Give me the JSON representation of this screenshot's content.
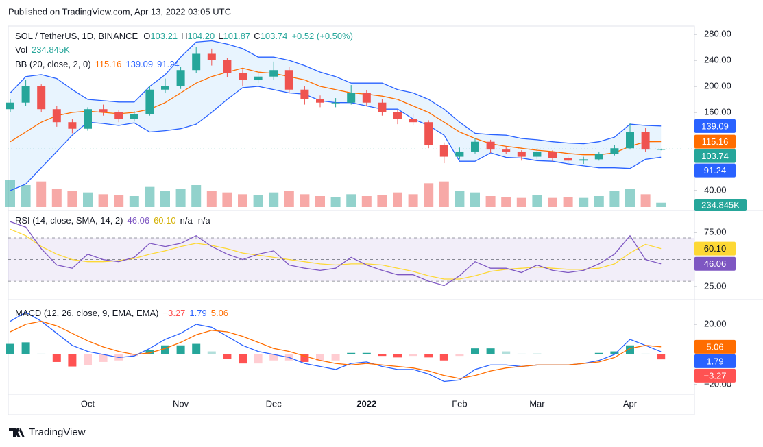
{
  "header": {
    "published": "Published on TradingView.com, Apr 13, 2022 03:05 UTC"
  },
  "footer": {
    "brand": "TradingView"
  },
  "chart_data": [
    {
      "type": "candlestick",
      "title": "SOL / TetherUS, 1D, BINANCE",
      "ohlc_letters": [
        "O",
        "H",
        "L",
        "C"
      ],
      "change": "+0.52 (+0.50%)",
      "high_last_label": "104.20",
      "x": [
        null,
        null,
        null,
        null,
        null,
        "Oct",
        null,
        null,
        null,
        null,
        null,
        "Nov",
        null,
        null,
        null,
        null,
        null,
        "Dec",
        null,
        null,
        null,
        null,
        null,
        "2022",
        null,
        null,
        null,
        null,
        null,
        "Feb",
        null,
        null,
        null,
        null,
        "Mar",
        null,
        null,
        null,
        null,
        null,
        "Apr",
        null,
        null
      ],
      "open": [
        165,
        175,
        200,
        165,
        145,
        135,
        165,
        160,
        150,
        157,
        195,
        200,
        225,
        250,
        240,
        220,
        210,
        215,
        225,
        195,
        180,
        175,
        175,
        190,
        175,
        160,
        150,
        145,
        110,
        92,
        100,
        115,
        103,
        100,
        92,
        100,
        90,
        86,
        88,
        96,
        105,
        130,
        103.21
      ],
      "high": [
        180,
        210,
        203,
        170,
        150,
        168,
        172,
        164,
        162,
        200,
        212,
        230,
        260,
        258,
        244,
        226,
        222,
        238,
        230,
        200,
        186,
        182,
        202,
        194,
        180,
        164,
        158,
        148,
        114,
        106,
        120,
        118,
        108,
        102,
        105,
        102,
        93,
        92,
        100,
        110,
        143,
        136,
        104.2
      ],
      "low": [
        160,
        170,
        160,
        138,
        128,
        132,
        155,
        145,
        146,
        155,
        190,
        196,
        220,
        232,
        214,
        200,
        205,
        210,
        190,
        172,
        168,
        168,
        172,
        170,
        155,
        142,
        140,
        105,
        82,
        88,
        97,
        98,
        96,
        86,
        88,
        85,
        82,
        81,
        86,
        94,
        103,
        100,
        101.87
      ],
      "close": [
        175,
        200,
        165,
        145,
        135,
        165,
        160,
        150,
        157,
        195,
        200,
        225,
        250,
        240,
        220,
        210,
        215,
        225,
        195,
        180,
        175,
        175,
        190,
        175,
        160,
        150,
        145,
        110,
        92,
        100,
        115,
        103,
        100,
        92,
        100,
        90,
        86,
        88,
        96,
        105,
        130,
        103,
        103.74
      ],
      "up_color": "#26a69a",
      "down_color": "#ef5350",
      "ylim": [
        14.7,
        292.6
      ],
      "yticks": [
        {
          "value": 40,
          "label": "40.00"
        },
        {
          "value": 160,
          "label": "160.00"
        },
        {
          "value": 200,
          "label": "200.00"
        },
        {
          "value": 240,
          "label": "240.00"
        },
        {
          "value": 280,
          "label": "280.00"
        }
      ],
      "volume": {
        "name": "Vol",
        "values": [
          1500000,
          1200000,
          1400000,
          1000000,
          900000,
          800000,
          700000,
          650000,
          600000,
          1100000,
          900000,
          1000000,
          1200000,
          900000,
          800000,
          700000,
          650000,
          800000,
          900000,
          700000,
          600000,
          550000,
          700000,
          600000,
          650000,
          800000,
          700000,
          1300000,
          1400000,
          900000,
          800000,
          600000,
          550000,
          500000,
          650000,
          500000,
          550000,
          500000,
          600000,
          900000,
          1000000,
          700000,
          234845
        ],
        "last_label": "234.845K",
        "up_color": "rgba(38,166,154,0.5)",
        "down_color": "rgba(239,83,80,0.5)"
      },
      "bb": {
        "name": "BB (20, close, 2, 0)",
        "fill": "rgba(33,150,243,0.1)",
        "basis": {
          "color": "#ff6d00",
          "values": [
            115,
            130,
            145,
            155,
            160,
            162,
            160,
            158,
            160,
            165,
            175,
            190,
            205,
            215,
            222,
            228,
            222,
            220,
            215,
            210,
            200,
            195,
            190,
            188,
            185,
            180,
            170,
            160,
            145,
            130,
            120,
            112,
            108,
            105,
            102,
            100,
            97,
            95,
            95,
            98,
            108,
            115,
            115.16
          ]
        },
        "upper": {
          "color": "#2962ff",
          "values": [
            190,
            215,
            218,
            212,
            195,
            180,
            178,
            176,
            176,
            200,
            218,
            245,
            268,
            270,
            265,
            258,
            245,
            245,
            240,
            232,
            222,
            215,
            205,
            205,
            205,
            195,
            190,
            180,
            165,
            145,
            128,
            126,
            125,
            120,
            118,
            115,
            113,
            112,
            115,
            122,
            142,
            140,
            139.09
          ]
        },
        "lower": {
          "color": "#2962ff",
          "values": [
            40,
            50,
            75,
            100,
            125,
            145,
            143,
            140,
            144,
            130,
            132,
            135,
            142,
            160,
            180,
            198,
            200,
            195,
            190,
            188,
            178,
            175,
            175,
            170,
            165,
            165,
            150,
            140,
            125,
            85,
            85,
            98,
            91,
            90,
            86,
            85,
            81,
            78,
            75,
            75,
            74,
            88,
            91.24
          ]
        }
      }
    },
    {
      "type": "line",
      "title": "RSI (14, close, SMA, 14, 2)",
      "na_labels": [
        "n/a",
        "n/a"
      ],
      "series": [
        {
          "color": "#7e57c2",
          "values": [
            85,
            80,
            60,
            45,
            42,
            55,
            50,
            48,
            52,
            65,
            62,
            65,
            72,
            62,
            55,
            50,
            55,
            58,
            45,
            42,
            40,
            42,
            52,
            45,
            40,
            36,
            36,
            30,
            26,
            35,
            48,
            42,
            42,
            38,
            45,
            40,
            38,
            40,
            46,
            55,
            72,
            50,
            46.06
          ]
        },
        {
          "color": "#fdd835",
          "values": [
            78,
            72,
            62,
            55,
            50,
            48,
            48,
            49,
            51,
            55,
            58,
            62,
            65,
            63,
            60,
            56,
            54,
            52,
            50,
            48,
            46,
            45,
            46,
            46,
            45,
            42,
            39,
            35,
            32,
            32,
            35,
            39,
            41,
            42,
            43,
            42,
            41,
            41,
            42,
            46,
            56,
            64,
            60.1
          ],
          "last_label": "60.10"
        }
      ],
      "bands": [
        30,
        50,
        70
      ],
      "band_fill": "rgba(126,87,194,0.1)",
      "ylim": [
        14.9,
        93.4
      ],
      "yticks": [
        {
          "value": 25,
          "label": "25.00"
        },
        {
          "value": 75,
          "label": "75.00"
        }
      ]
    },
    {
      "type": "macd",
      "title": "MACD (12, 26, close, 9, EMA, EMA)",
      "histogram": {
        "values": [
          7,
          8,
          0.5,
          -5,
          -8,
          -7,
          -5,
          -4,
          -1,
          3,
          6,
          6,
          7,
          2,
          -3,
          -6,
          -6,
          -4,
          -4,
          -5,
          -4,
          -4,
          1,
          1,
          -1,
          -2,
          -1,
          -2,
          -4,
          -1,
          4,
          4,
          2,
          0.5,
          0.5,
          0.3,
          0.3,
          0.3,
          1,
          2,
          6,
          0.5,
          -3.27
        ],
        "last_label": "−3.27",
        "colors": [
          "#26a69a",
          "#b2dfdb",
          "#ffcdd2",
          "#ff5252"
        ]
      },
      "series": [
        {
          "color": "#2962ff",
          "values": [
            22,
            28,
            22,
            14,
            6,
            2,
            0,
            -2,
            -1,
            4,
            10,
            14,
            20,
            18,
            12,
            6,
            2,
            0,
            -2,
            -6,
            -8,
            -10,
            -6,
            -5,
            -8,
            -10,
            -10,
            -13,
            -18,
            -17,
            -10,
            -7,
            -7,
            -8,
            -7,
            -7,
            -7,
            -6,
            -4,
            0,
            10,
            6,
            1.79
          ]
        },
        {
          "color": "#ff6d00",
          "values": [
            15,
            20,
            22,
            19,
            14,
            9,
            5,
            2,
            0,
            1,
            4,
            8,
            13,
            16,
            15,
            12,
            8,
            4,
            2,
            -1,
            -4,
            -6,
            -7,
            -6,
            -7,
            -8,
            -9,
            -11,
            -14,
            -16,
            -14,
            -11,
            -9,
            -8,
            -7,
            -7,
            -7,
            -6,
            -5,
            -2,
            4,
            6,
            5.06
          ]
        }
      ],
      "ylim": [
        -26.4,
        35
      ],
      "yticks": [
        {
          "value": -20,
          "label": "−20.00"
        },
        {
          "value": 20,
          "label": "20.00"
        }
      ]
    }
  ]
}
